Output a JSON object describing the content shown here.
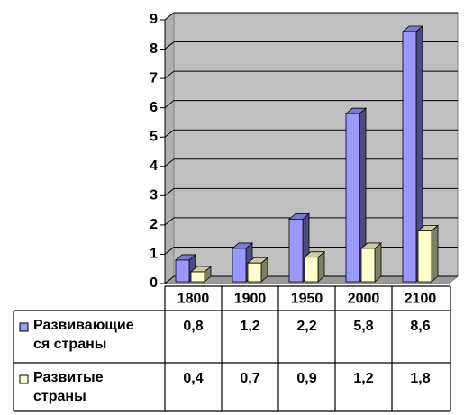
{
  "chart_data": {
    "type": "bar",
    "categories": [
      "1800",
      "1900",
      "1950",
      "2000",
      "2100"
    ],
    "series": [
      {
        "name": "Развивающие ся страны",
        "color": "#9999ff",
        "values": [
          0.8,
          1.2,
          2.2,
          5.8,
          8.6
        ],
        "value_labels": [
          "0,8",
          "1,2",
          "2,2",
          "5,8",
          "8,6"
        ]
      },
      {
        "name": "Развитые страны",
        "color": "#ffffcc",
        "values": [
          0.4,
          0.7,
          0.9,
          1.2,
          1.8
        ],
        "value_labels": [
          "0,4",
          "0,7",
          "0,9",
          "1,2",
          "1,8"
        ]
      }
    ],
    "ylim": [
      0,
      9
    ],
    "yticks": [
      0,
      1,
      2,
      3,
      4,
      5,
      6,
      7,
      8,
      9
    ],
    "grid": true
  }
}
